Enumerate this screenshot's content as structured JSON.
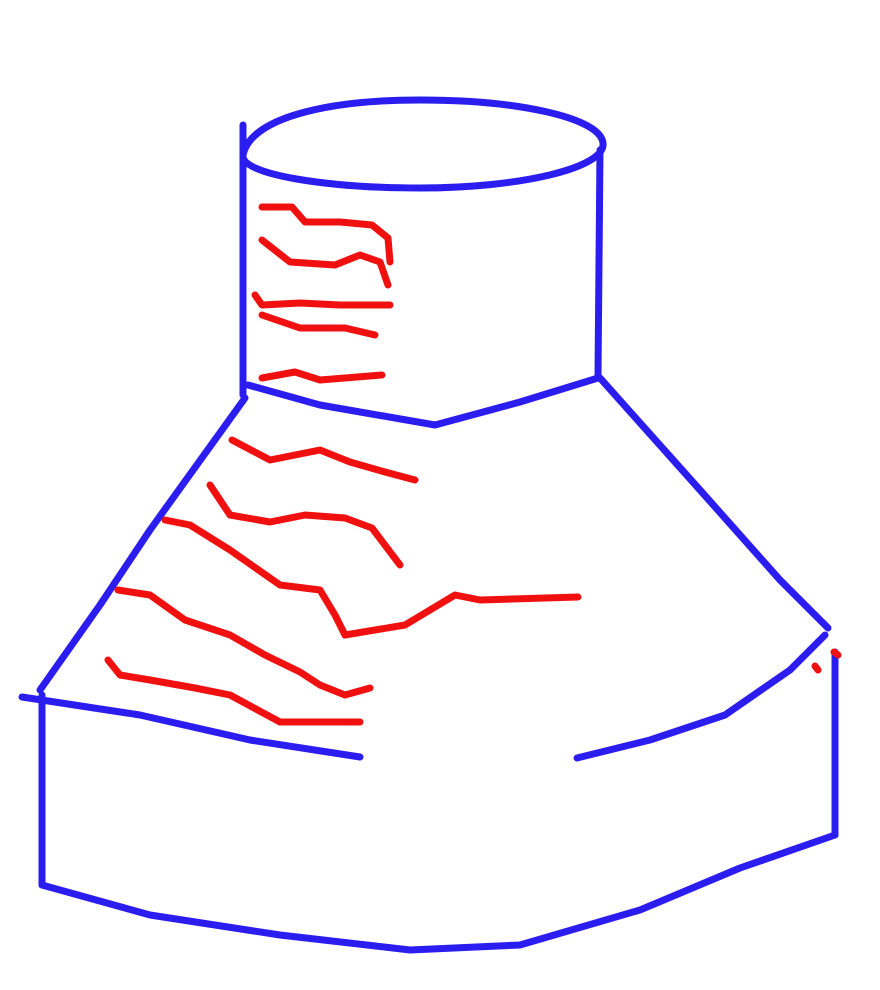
{
  "drawing": {
    "subject": "",
    "outline_color": "#2b1cf0",
    "hatch_color": "#f01010",
    "background": "#ffffff"
  }
}
